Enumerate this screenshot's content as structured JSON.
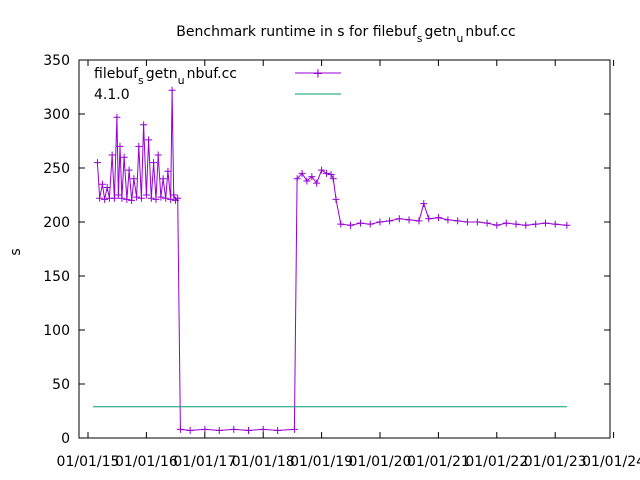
{
  "chart_data": {
    "type": "line",
    "title_parts": [
      "Benchmark runtime in s for filebuf",
      "s",
      "getn",
      "u",
      "nbuf.cc"
    ],
    "ylabel": "s",
    "xlabel": "",
    "ylim": [
      0,
      350
    ],
    "y_ticks": [
      0,
      50,
      100,
      150,
      200,
      250,
      300,
      350
    ],
    "x_tick_labels": [
      "01/01/15",
      "01/01/16",
      "01/01/17",
      "01/01/18",
      "01/01/19",
      "01/01/20",
      "01/01/21",
      "01/01/22",
      "01/01/23",
      "01/01/24"
    ],
    "grid": false,
    "legend_position": "top-left",
    "series": [
      {
        "name_parts": [
          "filebuf",
          "s",
          "getn",
          "u",
          "nbuf.cc"
        ],
        "color": "#9400d3",
        "style": "line-with-plus-markers",
        "points": [
          [
            "2015-03-01",
            255
          ],
          [
            "2015-03-15",
            222
          ],
          [
            "2015-04-01",
            235
          ],
          [
            "2015-04-15",
            221
          ],
          [
            "2015-05-01",
            232
          ],
          [
            "2015-05-15",
            222
          ],
          [
            "2015-06-01",
            262
          ],
          [
            "2015-06-15",
            222
          ],
          [
            "2015-07-01",
            297
          ],
          [
            "2015-07-10",
            225
          ],
          [
            "2015-07-20",
            270
          ],
          [
            "2015-08-01",
            222
          ],
          [
            "2015-08-15",
            260
          ],
          [
            "2015-09-01",
            221
          ],
          [
            "2015-09-15",
            248
          ],
          [
            "2015-10-01",
            220
          ],
          [
            "2015-10-15",
            240
          ],
          [
            "2015-11-01",
            223
          ],
          [
            "2015-11-15",
            270
          ],
          [
            "2015-12-01",
            222
          ],
          [
            "2015-12-15",
            290
          ],
          [
            "2016-01-01",
            225
          ],
          [
            "2016-01-15",
            276
          ],
          [
            "2016-02-01",
            222
          ],
          [
            "2016-02-15",
            255
          ],
          [
            "2016-03-01",
            221
          ],
          [
            "2016-03-15",
            262
          ],
          [
            "2016-04-01",
            223
          ],
          [
            "2016-04-15",
            240
          ],
          [
            "2016-05-01",
            222
          ],
          [
            "2016-05-15",
            247
          ],
          [
            "2016-06-01",
            221
          ],
          [
            "2016-06-10",
            322
          ],
          [
            "2016-06-20",
            225
          ],
          [
            "2016-07-01",
            220
          ],
          [
            "2016-07-15",
            222
          ],
          [
            "2016-08-01",
            8
          ],
          [
            "2016-10-01",
            7
          ],
          [
            "2017-01-01",
            8
          ],
          [
            "2017-04-01",
            7
          ],
          [
            "2017-07-01",
            8
          ],
          [
            "2017-10-01",
            7
          ],
          [
            "2018-01-01",
            8
          ],
          [
            "2018-04-01",
            7
          ],
          [
            "2018-07-15",
            8
          ],
          [
            "2018-08-01",
            240
          ],
          [
            "2018-09-01",
            245
          ],
          [
            "2018-10-01",
            238
          ],
          [
            "2018-11-01",
            242
          ],
          [
            "2018-12-01",
            236
          ],
          [
            "2019-01-01",
            248
          ],
          [
            "2019-02-01",
            245
          ],
          [
            "2019-03-01",
            244
          ],
          [
            "2019-03-15",
            240
          ],
          [
            "2019-04-01",
            221
          ],
          [
            "2019-05-01",
            198
          ],
          [
            "2019-07-01",
            197
          ],
          [
            "2019-09-01",
            199
          ],
          [
            "2019-11-01",
            198
          ],
          [
            "2020-01-01",
            200
          ],
          [
            "2020-03-01",
            201
          ],
          [
            "2020-05-01",
            203
          ],
          [
            "2020-07-01",
            202
          ],
          [
            "2020-09-01",
            201
          ],
          [
            "2020-10-01",
            217
          ],
          [
            "2020-11-01",
            203
          ],
          [
            "2021-01-01",
            204
          ],
          [
            "2021-03-01",
            202
          ],
          [
            "2021-05-01",
            201
          ],
          [
            "2021-07-01",
            200
          ],
          [
            "2021-09-01",
            200
          ],
          [
            "2021-11-01",
            199
          ],
          [
            "2022-01-01",
            197
          ],
          [
            "2022-03-01",
            199
          ],
          [
            "2022-05-01",
            198
          ],
          [
            "2022-07-01",
            197
          ],
          [
            "2022-09-01",
            198
          ],
          [
            "2022-11-01",
            199
          ],
          [
            "2023-01-01",
            198
          ],
          [
            "2023-03-15",
            197
          ]
        ]
      },
      {
        "name": "4.1.0",
        "color": "#009e73",
        "style": "line",
        "points": [
          [
            "2015-02-01",
            29
          ],
          [
            "2023-03-15",
            29
          ]
        ]
      }
    ]
  }
}
